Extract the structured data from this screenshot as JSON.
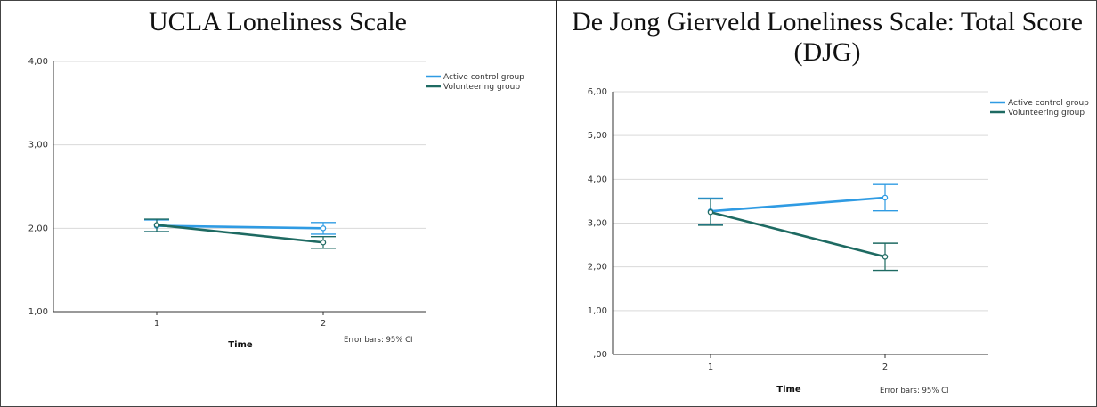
{
  "chart_data": [
    {
      "type": "line",
      "title": "UCLA Loneliness Scale",
      "xlabel": "Time",
      "ylabel": "",
      "categories": [
        "1",
        "2"
      ],
      "ylim": [
        1,
        4
      ],
      "yticks": [
        "1,00",
        "2,00",
        "3,00",
        "4,00"
      ],
      "grid": true,
      "legend_position": "top-right",
      "note": "Error bars: 95% CI",
      "series": [
        {
          "name": "Active control group",
          "values": [
            2.03,
            2.0
          ],
          "ci_low": [
            1.96,
            1.93
          ],
          "ci_high": [
            2.1,
            2.07
          ],
          "color": "#2f9be3"
        },
        {
          "name": "Volunteering group",
          "values": [
            2.04,
            1.83
          ],
          "ci_low": [
            1.96,
            1.76
          ],
          "ci_high": [
            2.11,
            1.9
          ],
          "color": "#1e6a62"
        }
      ]
    },
    {
      "type": "line",
      "title": "De Jong Gierveld Loneliness Scale: Total Score (DJG)",
      "xlabel": "Time",
      "ylabel": "",
      "categories": [
        "1",
        "2"
      ],
      "ylim": [
        0,
        6
      ],
      "yticks": [
        ",00",
        "1,00",
        "2,00",
        "3,00",
        "4,00",
        "5,00",
        "6,00"
      ],
      "grid": true,
      "legend_position": "top-right",
      "note": "Error bars: 95% CI",
      "series": [
        {
          "name": "Active control group",
          "values": [
            3.27,
            3.58
          ],
          "ci_low": [
            2.96,
            3.28
          ],
          "ci_high": [
            3.57,
            3.88
          ],
          "color": "#2f9be3"
        },
        {
          "name": "Volunteering group",
          "values": [
            3.25,
            2.23
          ],
          "ci_low": [
            2.95,
            1.92
          ],
          "ci_high": [
            3.55,
            2.54
          ],
          "color": "#1e6a62"
        }
      ]
    }
  ]
}
